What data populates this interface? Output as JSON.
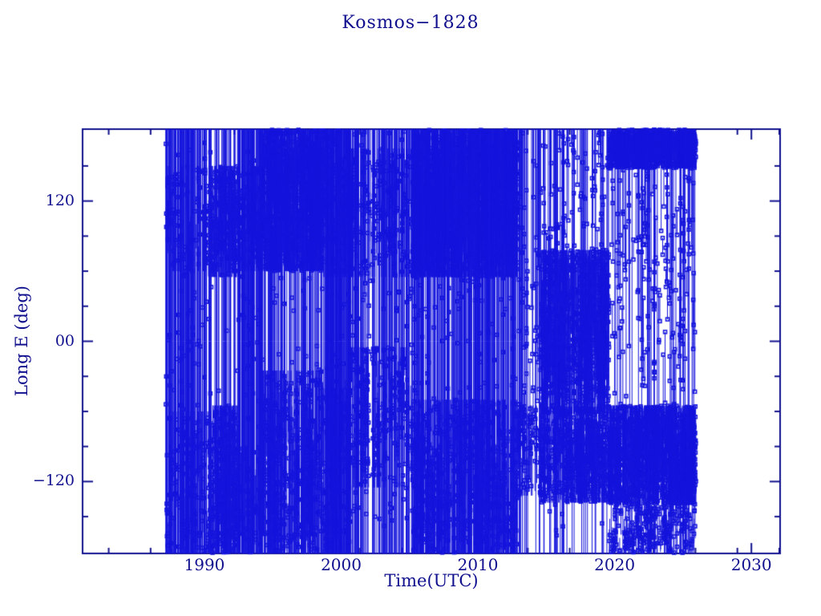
{
  "chart_data": {
    "type": "scatter",
    "title": "Kosmos−1828",
    "xlabel": "Time(UTC)",
    "ylabel": "Long E (deg)",
    "xlim": [
      1981.09,
      2032.1
    ],
    "ylim": [
      -181.5,
      181.5
    ],
    "x_major_ticks": [
      1990,
      2000,
      2010,
      2020,
      2030
    ],
    "x_tick_labels": [
      "1990",
      "2000",
      "2010",
      "2020",
      "2030"
    ],
    "x_minor_tick_start": 1983.0,
    "x_minor_tick_step": 3.065,
    "y_major_ticks": [
      120,
      0,
      -120
    ],
    "y_tick_labels": [
      "120",
      "00",
      "−120"
    ],
    "y_minor_ticks": [
      150,
      90,
      60,
      30,
      -30,
      -60,
      -90,
      -150
    ],
    "grid": false,
    "legend": "none",
    "marker": "open-square",
    "marker_size_px": 4,
    "line_color": "#1414dc",
    "axis_color": "#10108e",
    "background": "#ffffff",
    "data_time_range": [
      1987.15,
      2025.95
    ],
    "series_note": "Dense longitude-vs-time track sampled from the screenshot; thousands of wrapped passes are reproduced procedurally from these per-epoch density bands (deg East).",
    "seed": 1828,
    "epochs": [
      {
        "t0": 1987.15,
        "t1": 1990.3,
        "components": [
          {
            "kind": "full",
            "per_year": 34
          },
          {
            "kind": "band",
            "per_year": 22,
            "range": [
              -181,
              -60
            ]
          },
          {
            "kind": "band",
            "per_year": 14,
            "range": [
              60,
              150
            ]
          }
        ]
      },
      {
        "t0": 1990.3,
        "t1": 1992.5,
        "components": [
          {
            "kind": "band",
            "per_year": 70,
            "range": [
              55,
              150
            ]
          },
          {
            "kind": "band",
            "per_year": 80,
            "range": [
              -181,
              -55
            ]
          },
          {
            "kind": "full",
            "per_year": 16
          }
        ]
      },
      {
        "t0": 1992.5,
        "t1": 1994.3,
        "components": [
          {
            "kind": "full",
            "per_year": 42
          },
          {
            "kind": "band",
            "per_year": 34,
            "range": [
              60,
              150
            ]
          },
          {
            "kind": "band",
            "per_year": 20,
            "range": [
              -181,
              -90
            ]
          }
        ]
      },
      {
        "t0": 1994.3,
        "t1": 1998.7,
        "components": [
          {
            "kind": "band",
            "per_year": 115,
            "range": [
              60,
              181
            ]
          },
          {
            "kind": "band",
            "per_year": 52,
            "range": [
              -181,
              -25
            ]
          },
          {
            "kind": "full",
            "per_year": 20
          }
        ]
      },
      {
        "t0": 1998.7,
        "t1": 2000.6,
        "components": [
          {
            "kind": "full",
            "per_year": 46
          },
          {
            "kind": "band",
            "per_year": 42,
            "range": [
              -181,
              -40
            ]
          },
          {
            "kind": "band",
            "per_year": 36,
            "range": [
              55,
              181
            ]
          }
        ]
      },
      {
        "t0": 2000.6,
        "t1": 2005.2,
        "components": [
          {
            "kind": "full",
            "per_year": 20
          },
          {
            "kind": "band",
            "per_year": 28,
            "range": [
              -125,
              -5
            ]
          },
          {
            "kind": "band",
            "per_year": 22,
            "range": [
              55,
              165
            ]
          },
          {
            "kind": "hang",
            "per_year": 8,
            "range": [
              -20,
              130
            ]
          }
        ]
      },
      {
        "t0": 2005.2,
        "t1": 2012.9,
        "components": [
          {
            "kind": "band",
            "per_year": 115,
            "range": [
              55,
              181
            ]
          },
          {
            "kind": "full",
            "per_year": 28
          },
          {
            "kind": "band",
            "per_year": 42,
            "range": [
              -181,
              -50
            ]
          }
        ]
      },
      {
        "t0": 2012.9,
        "t1": 2014.6,
        "components": [
          {
            "kind": "full",
            "per_year": 7
          },
          {
            "kind": "hang",
            "per_year": 14,
            "range": [
              -70,
              150
            ]
          },
          {
            "kind": "band",
            "per_year": 32,
            "range": [
              -132,
              -55
            ]
          },
          {
            "kind": "float",
            "per_year": 8,
            "range": [
              -60,
              120
            ]
          }
        ]
      },
      {
        "t0": 2014.6,
        "t1": 2019.6,
        "components": [
          {
            "kind": "band",
            "per_year": 85,
            "range": [
              -62,
              78
            ]
          },
          {
            "kind": "band",
            "per_year": 68,
            "range": [
              -138,
              -56
            ]
          },
          {
            "kind": "full",
            "per_year": 6
          },
          {
            "kind": "hang",
            "per_year": 9,
            "range": [
              20,
              170
            ]
          },
          {
            "kind": "float",
            "per_year": 10,
            "range": [
              -50,
              100
            ]
          }
        ]
      },
      {
        "t0": 2019.6,
        "t1": 2025.95,
        "components": [
          {
            "kind": "band",
            "per_year": 112,
            "range": [
              -140,
              -55
            ]
          },
          {
            "kind": "band",
            "per_year": 96,
            "range": [
              148,
              181
            ]
          },
          {
            "kind": "band",
            "per_year": 24,
            "range": [
              -181,
              -140
            ]
          },
          {
            "kind": "full",
            "per_year": 5
          },
          {
            "kind": "hang",
            "per_year": 8,
            "range": [
              -45,
              140
            ]
          },
          {
            "kind": "float",
            "per_year": 9,
            "range": [
              -40,
              120
            ]
          }
        ]
      }
    ]
  }
}
